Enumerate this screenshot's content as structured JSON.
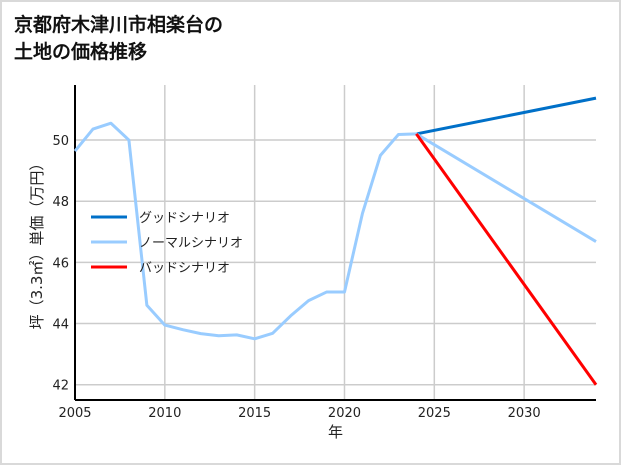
{
  "chart_data": {
    "type": "line",
    "title_lines": [
      "京都府木津川市相楽台の",
      "土地の価格推移"
    ],
    "xlabel": "年",
    "ylabel": "坪（3.3㎡）単価（万円）",
    "xlim": [
      2005,
      2034
    ],
    "ylim": [
      41.5,
      51.8
    ],
    "xticks": [
      2005,
      2010,
      2015,
      2020,
      2025,
      2030
    ],
    "yticks": [
      42,
      44,
      46,
      48,
      50
    ],
    "grid": true,
    "legend_position": "center-left",
    "series": [
      {
        "name": "グッドシナリオ",
        "color": "#0070c8",
        "x": [
          2024,
          2034
        ],
        "y": [
          50.2,
          51.37
        ]
      },
      {
        "name": "ノーマルシナリオ",
        "color": "#99ccff",
        "x": [
          2005,
          2006,
          2007,
          2008,
          2009,
          2010,
          2011,
          2012,
          2013,
          2014,
          2015,
          2016,
          2017,
          2018,
          2019,
          2020,
          2021,
          2022,
          2023,
          2024,
          2034
        ],
        "y": [
          49.64,
          50.36,
          50.55,
          50.0,
          44.6,
          43.95,
          43.8,
          43.67,
          43.6,
          43.63,
          43.5,
          43.68,
          44.25,
          44.75,
          45.03,
          45.03,
          47.6,
          49.5,
          50.18,
          50.2,
          46.68
        ]
      },
      {
        "name": "バッドシナリオ",
        "color": "#ff0000",
        "x": [
          2024,
          2034
        ],
        "y": [
          50.2,
          42.0
        ]
      }
    ]
  }
}
